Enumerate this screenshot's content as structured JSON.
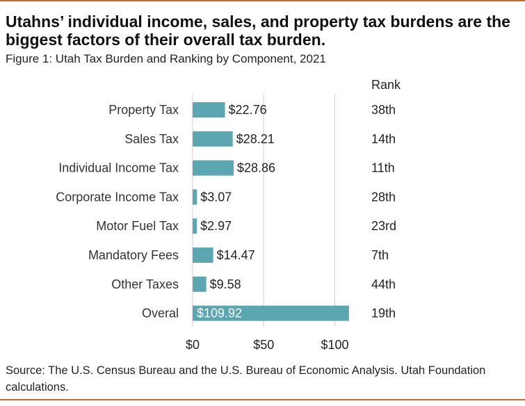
{
  "header": {
    "title": "Utahns’ individual income, sales, and property tax burdens are the biggest factors of their overall tax burden.",
    "subtitle": "Figure 1: Utah Tax Burden and Ranking by Component, 2021"
  },
  "footer": {
    "source": "Source: The U.S. Census Bureau and the U.S. Bureau of Economic Analysis. Utah Foundation calculations."
  },
  "colors": {
    "bar": "#5ba6b1",
    "accent_rule": "#c8692a",
    "grid": "#d0d0d0"
  },
  "chart_data": {
    "type": "bar",
    "orientation": "horizontal",
    "categories": [
      "Property Tax",
      "Sales Tax",
      "Individual Income Tax",
      "Corporate Income Tax",
      "Motor Fuel Tax",
      "Mandatory Fees",
      "Other Taxes",
      "Overal"
    ],
    "values": [
      22.76,
      28.21,
      28.86,
      3.07,
      2.97,
      14.47,
      9.58,
      109.92
    ],
    "value_labels": [
      "$22.76",
      "$28.21",
      "$28.86",
      "$3.07",
      "$2.97",
      "$14.47",
      "$9.58",
      "$109.92"
    ],
    "rank_header": "Rank",
    "ranks": [
      "38th",
      "14th",
      "11th",
      "28th",
      "23rd",
      "7th",
      "44th",
      "19th"
    ],
    "xlim": [
      0,
      110
    ],
    "xticks": [
      0,
      50,
      100
    ],
    "xtick_labels": [
      "$0",
      "$50",
      "$100"
    ],
    "grid": true,
    "xlabel": "",
    "ylabel": ""
  }
}
